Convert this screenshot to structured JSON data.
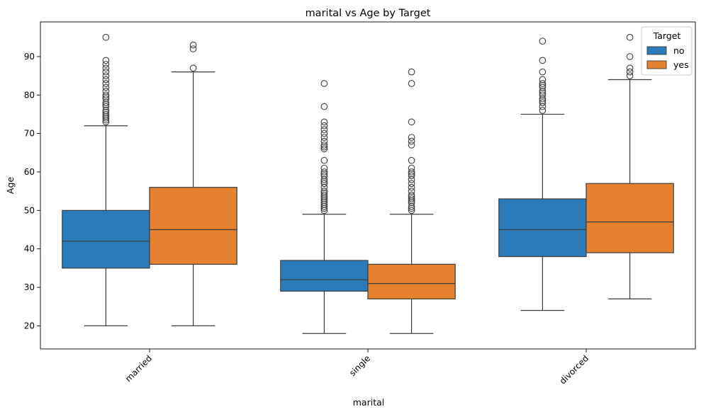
{
  "chart_data": {
    "type": "box",
    "title": "marital vs Age by Target",
    "xlabel": "marital",
    "ylabel": "Age",
    "ylim": [
      14,
      99
    ],
    "yticks": [
      20,
      30,
      40,
      50,
      60,
      70,
      80,
      90
    ],
    "categories": [
      "married",
      "single",
      "divorced"
    ],
    "legend": {
      "title": "Target",
      "position": "top-right",
      "entries": [
        {
          "name": "no",
          "color": "#2b7bba"
        },
        {
          "name": "yes",
          "color": "#e6812f"
        }
      ]
    },
    "series": [
      {
        "name": "no",
        "color": "#2b7bba",
        "boxes": [
          {
            "category": "married",
            "whisker_low": 20,
            "q1": 35,
            "median": 42,
            "q3": 50,
            "whisker_high": 72,
            "outliers": [
              73,
              73.5,
              74,
              74.5,
              75,
              75.5,
              76,
              77,
              77.5,
              78,
              79,
              79.5,
              80,
              81,
              82,
              83,
              84,
              85,
              86,
              87,
              88,
              89,
              95
            ]
          },
          {
            "category": "single",
            "whisker_low": 18,
            "q1": 29,
            "median": 32,
            "q3": 37,
            "whisker_high": 49,
            "outliers": [
              50,
              50.5,
              51,
              51.5,
              52,
              52.5,
              53,
              53.5,
              54,
              54.5,
              55,
              56,
              57,
              57.5,
              58,
              59,
              59.5,
              60,
              61,
              63,
              66,
              66.5,
              67,
              68,
              69,
              70,
              71,
              72,
              73,
              77,
              83
            ]
          },
          {
            "category": "divorced",
            "whisker_low": 24,
            "q1": 38,
            "median": 45,
            "q3": 53,
            "whisker_high": 75,
            "outliers": [
              76,
              77,
              78,
              78.5,
              79,
              80,
              80.5,
              81,
              82,
              82.5,
              83,
              84,
              86,
              89,
              94
            ]
          }
        ]
      },
      {
        "name": "yes",
        "color": "#e6812f",
        "boxes": [
          {
            "category": "married",
            "whisker_low": 20,
            "q1": 36,
            "median": 45,
            "q3": 56,
            "whisker_high": 86,
            "outliers": [
              87,
              92,
              93
            ]
          },
          {
            "category": "single",
            "whisker_low": 18,
            "q1": 27,
            "median": 31,
            "q3": 36,
            "whisker_high": 49,
            "outliers": [
              50,
              50.5,
              51,
              52,
              52.5,
              53,
              53.5,
              54,
              55,
              56,
              57,
              58,
              59,
              59.5,
              60,
              61,
              63,
              67,
              68,
              69,
              73,
              83,
              86
            ]
          },
          {
            "category": "divorced",
            "whisker_low": 27,
            "q1": 39,
            "median": 47,
            "q3": 57,
            "whisker_high": 84,
            "outliers": [
              85,
              86,
              87,
              90,
              95
            ]
          }
        ]
      }
    ]
  }
}
